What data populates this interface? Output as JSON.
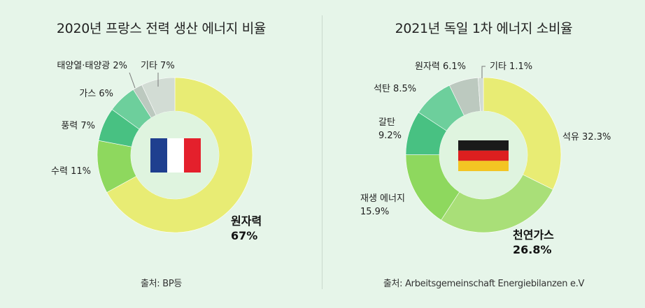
{
  "chart_data": [
    {
      "type": "pie",
      "title": "2020년 프랑스 전력 생산 에너지 비율",
      "source": "출처: BP등",
      "slices": [
        {
          "label": "원자력",
          "value": 67,
          "value_text": "67%",
          "color": "#e8ec74"
        },
        {
          "label": "수력",
          "value": 11,
          "value_text": "11%",
          "color": "#8ed85e"
        },
        {
          "label": "풍력",
          "value": 7,
          "value_text": "7%",
          "color": "#48c182"
        },
        {
          "label": "가스",
          "value": 6,
          "value_text": "6%",
          "color": "#6dcf9c"
        },
        {
          "label": "태양열·태양광",
          "value": 2,
          "value_text": "2%",
          "color": "#bcc9bf"
        },
        {
          "label": "기타",
          "value": 7,
          "value_text": "7%",
          "color": "#d2dcd4"
        }
      ],
      "center_flag": "france-flag"
    },
    {
      "type": "pie",
      "title": "2021년 독일 1차 에너지 소비율",
      "source": "출처: Arbeitsgemeinschaft Energiebilanzen e.V",
      "slices": [
        {
          "label": "석유",
          "value": 32.3,
          "value_text": "32.3%",
          "color": "#e8ec74"
        },
        {
          "label": "천연가스",
          "value": 26.8,
          "value_text": "26.8%",
          "color": "#a9df78"
        },
        {
          "label": "재생 에너지",
          "value": 15.9,
          "value_text": "15.9%",
          "color": "#8ed85e"
        },
        {
          "label": "갈탄",
          "value": 9.2,
          "value_text": "9.2%",
          "color": "#48c182"
        },
        {
          "label": "석탄",
          "value": 8.5,
          "value_text": "8.5%",
          "color": "#6dcf9c"
        },
        {
          "label": "원자력",
          "value": 6.1,
          "value_text": "6.1%",
          "color": "#bcc9bf"
        },
        {
          "label": "기타",
          "value": 1.1,
          "value_text": "1.1%",
          "color": "#d2dcd4"
        }
      ],
      "center_flag": "germany-flag"
    }
  ]
}
